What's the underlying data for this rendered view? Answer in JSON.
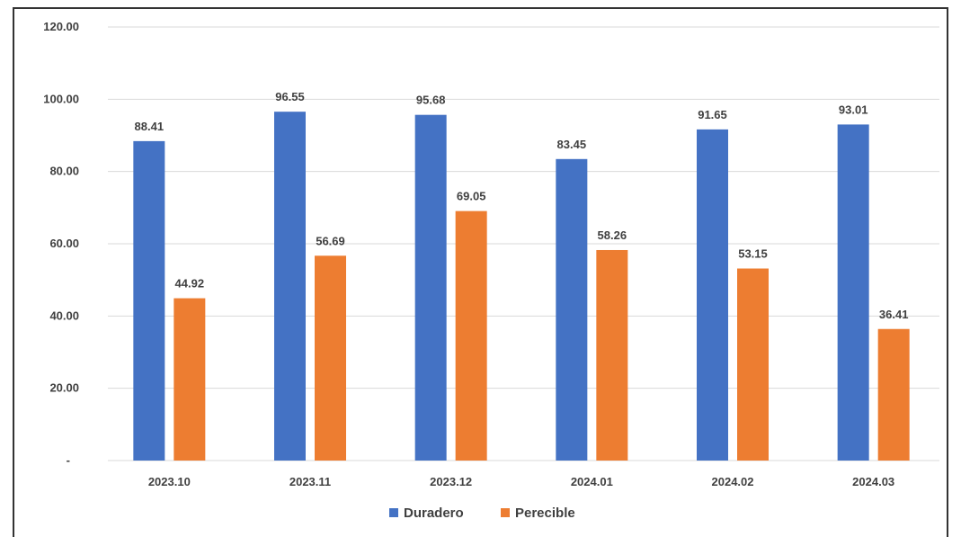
{
  "chart_data": {
    "type": "bar",
    "categories": [
      "2023.10",
      "2023.11",
      "2023.12",
      "2024.01",
      "2024.02",
      "2024.03"
    ],
    "series": [
      {
        "name": "Duradero",
        "color": "#4472c4",
        "values": [
          88.41,
          96.55,
          95.68,
          83.45,
          91.65,
          93.01
        ],
        "labels": [
          "88.41",
          "96.55",
          "95.68",
          "83.45",
          "91.65",
          "93.01"
        ]
      },
      {
        "name": "Perecible",
        "color": "#ed7d31",
        "values": [
          44.92,
          56.69,
          69.05,
          58.26,
          53.15,
          36.41
        ],
        "labels": [
          "44.92",
          "56.69",
          "69.05",
          "58.26",
          "53.15",
          "36.41"
        ]
      }
    ],
    "ylim": [
      0,
      120
    ],
    "yticks": [
      0,
      20,
      40,
      60,
      80,
      100,
      120
    ],
    "ytick_labels": [
      "-",
      "20.00",
      "40.00",
      "60.00",
      "80.00",
      "100.00",
      "120.00"
    ],
    "grid": true,
    "legend_position": "bottom"
  }
}
